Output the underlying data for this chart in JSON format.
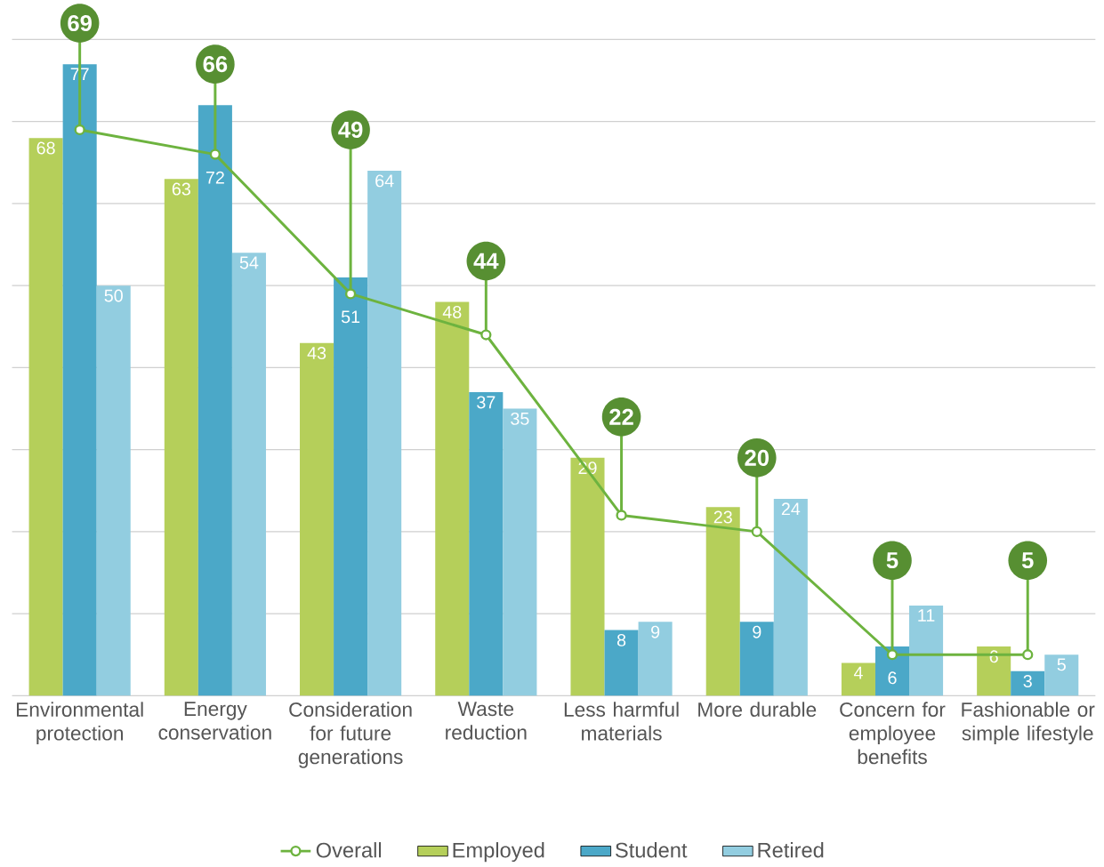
{
  "chart_data": {
    "type": "bar",
    "categories": [
      "Environmental protection",
      "Energy conservation",
      "Consideration for future generations",
      "Waste reduction",
      "Less harmful materials",
      "More durable",
      "Concern for employee benefits",
      "Fashionable or simple lifestyle"
    ],
    "series": [
      {
        "name": "Overall",
        "type": "line",
        "color": "#6db33f",
        "marker": "circle",
        "values": [
          69,
          66,
          49,
          44,
          22,
          20,
          5,
          5
        ]
      },
      {
        "name": "Employed",
        "color": "#b5cf5a",
        "values": [
          68,
          63,
          43,
          48,
          29,
          23,
          4,
          6
        ],
        "value_labels": [
          "68",
          "63",
          "43",
          "48",
          "29",
          "23",
          "4",
          "6"
        ]
      },
      {
        "name": "Student",
        "color": "#4ba8c8",
        "values": [
          77,
          72,
          51,
          37,
          8,
          9,
          6,
          3
        ],
        "value_labels": [
          "77",
          "72",
          "51",
          "37",
          "8",
          "9",
          "6",
          "3"
        ]
      },
      {
        "name": "Retired",
        "color": "#92cde0",
        "values": [
          50,
          54,
          64,
          35,
          9,
          24,
          11,
          5
        ],
        "value_labels": [
          "50",
          "54",
          "64",
          "35",
          "9",
          "24",
          "11",
          "5"
        ]
      }
    ],
    "annotations": [
      {
        "text": "69",
        "x": "Environmental protection",
        "y": 69
      },
      {
        "text": "66",
        "x": "Energy conservation",
        "y": 66
      },
      {
        "text": "49",
        "x": "Consideration for future generations",
        "y": 49
      },
      {
        "text": "44",
        "x": "Waste reduction",
        "y": 44
      },
      {
        "text": "22",
        "x": "Less harmful materials",
        "y": 22
      },
      {
        "text": "20",
        "x": "More durable",
        "y": 20
      },
      {
        "text": "5",
        "x": "Concern for employee benefits",
        "y": 5
      },
      {
        "text": "5",
        "x": "Fashionable or simple lifestyle",
        "y": 5
      }
    ],
    "yticks": [
      {
        "value": 0,
        "label": null
      },
      {
        "value": 10,
        "label": null
      },
      {
        "value": 20,
        "label": null
      },
      {
        "value": 30,
        "label": null
      },
      {
        "value": 40,
        "label": null
      },
      {
        "value": 50,
        "label": null
      },
      {
        "value": 60,
        "label": null
      },
      {
        "value": 70,
        "label": null
      },
      {
        "value": 80,
        "label": null
      }
    ],
    "tick_labels": "x",
    "grid": "y",
    "legend": "bottom"
  }
}
